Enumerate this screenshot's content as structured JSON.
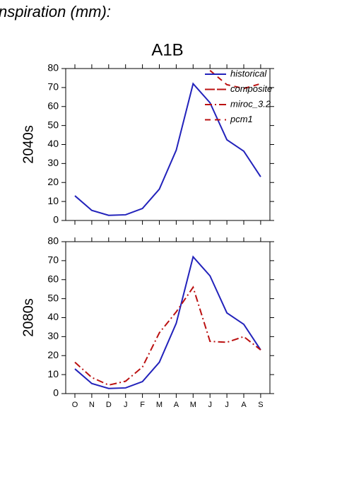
{
  "title": "nspiration (mm):",
  "subtitle": "A1B",
  "chart_data": [
    {
      "type": "line",
      "ylabel": "2040s",
      "categories": [
        "O",
        "N",
        "D",
        "J",
        "F",
        "M",
        "A",
        "M",
        "J",
        "J",
        "A",
        "S"
      ],
      "show_x_labels": false,
      "ylim": [
        0,
        80
      ],
      "yticks": [
        0,
        10,
        20,
        30,
        40,
        50,
        60,
        70,
        80
      ],
      "legend": [
        {
          "name": "historical",
          "color": "#2222bb",
          "dash": "none"
        },
        {
          "name": "composite",
          "color": "#bb1111",
          "dash": "14,3"
        },
        {
          "name": "miroc_3.2",
          "color": "#bb1111",
          "dash": "10,4,2,4"
        },
        {
          "name": "pcm1",
          "color": "#bb1111",
          "dash": "8,6"
        }
      ],
      "series": [
        {
          "name": "historical",
          "color": "#2222bb",
          "dash": "none",
          "values": [
            13,
            5.3,
            2.7,
            3,
            6.3,
            16.5,
            37,
            72,
            62,
            42.5,
            36.5,
            23
          ]
        },
        {
          "name": "pcm1",
          "color": "#bb1111",
          "dash": "8,6",
          "values": [
            null,
            null,
            null,
            null,
            null,
            null,
            null,
            null,
            79,
            71.5,
            69.5,
            72
          ]
        }
      ]
    },
    {
      "type": "line",
      "ylabel": "2080s",
      "categories": [
        "O",
        "N",
        "D",
        "J",
        "F",
        "M",
        "A",
        "M",
        "J",
        "J",
        "A",
        "S"
      ],
      "show_x_labels": true,
      "ylim": [
        0,
        80
      ],
      "yticks": [
        0,
        10,
        20,
        30,
        40,
        50,
        60,
        70,
        80
      ],
      "series": [
        {
          "name": "historical",
          "color": "#2222bb",
          "dash": "none",
          "values": [
            13,
            5.3,
            2.7,
            3,
            6.3,
            16.5,
            37,
            72,
            62,
            42.5,
            36.5,
            23
          ]
        },
        {
          "name": "miroc_3.2",
          "color": "#bb1111",
          "dash": "10,4,2,4",
          "values": [
            16.5,
            8.5,
            4.5,
            6.5,
            14,
            32,
            43,
            56,
            27.5,
            27,
            30,
            23
          ]
        }
      ]
    }
  ]
}
